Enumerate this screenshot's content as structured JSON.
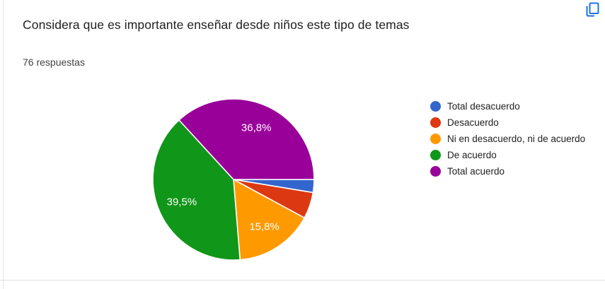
{
  "card": {
    "title": "Considera que es importante enseñar desde niños este tipo de temas",
    "responses_count": "76 respuestas"
  },
  "icons": {
    "copy": "copy-icon"
  },
  "chart_data": {
    "type": "pie",
    "title": "Considera que es importante enseñar desde niños este tipo de temas",
    "subtitle": "76 respuestas",
    "legend_position": "right",
    "direction": "clockwise",
    "start_angle_deg_from_east": 0,
    "categories": [
      "Total desacuerdo",
      "Desacuerdo",
      "Ni en desacuerdo, ni de acuerdo",
      "De acuerdo",
      "Total acuerdo"
    ],
    "values_pct": [
      2.6,
      5.3,
      15.8,
      39.5,
      36.8
    ],
    "slice_labels": [
      "",
      "",
      "15,8%",
      "39,5%",
      "36,8%"
    ],
    "colors": [
      "#3366CC",
      "#DC3912",
      "#FF9900",
      "#109618",
      "#990099"
    ],
    "label_color": "#FFFFFF"
  }
}
